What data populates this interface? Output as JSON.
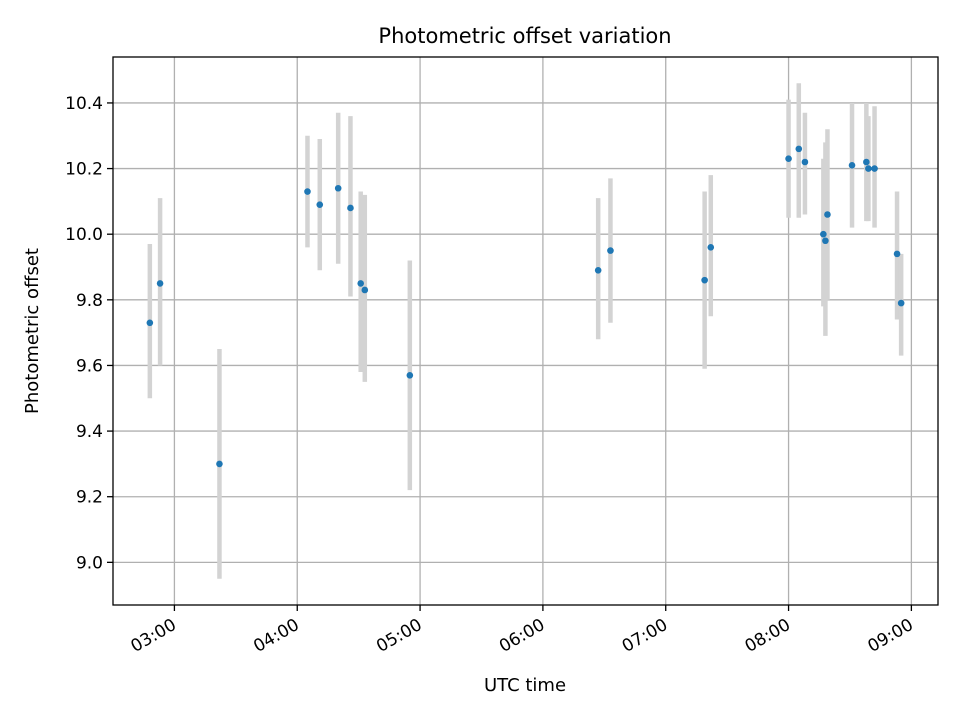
{
  "chart_data": {
    "type": "scatter",
    "title": "Photometric offset variation",
    "xlabel": "UTC time",
    "ylabel": "Photometric offset",
    "xlim": [
      "02:30",
      "09:13"
    ],
    "ylim": [
      8.87,
      10.54
    ],
    "x_ticks": [
      "03:00",
      "04:00",
      "05:00",
      "06:00",
      "07:00",
      "08:00",
      "09:00"
    ],
    "y_ticks": [
      "9.0",
      "9.2",
      "9.4",
      "9.6",
      "9.8",
      "10.0",
      "10.2",
      "10.4"
    ],
    "grid": true,
    "colors": {
      "points": "#1f77b4",
      "error_bars": "#d3d3d3"
    },
    "series": [
      {
        "points": [
          {
            "x": "02:48",
            "y": 9.73,
            "ylow": 9.5,
            "yhigh": 9.97
          },
          {
            "x": "02:53",
            "y": 9.85,
            "ylow": 9.6,
            "yhigh": 10.11
          },
          {
            "x": "03:22",
            "y": 9.3,
            "ylow": 8.95,
            "yhigh": 9.65
          },
          {
            "x": "04:05",
            "y": 10.13,
            "ylow": 9.96,
            "yhigh": 10.3
          },
          {
            "x": "04:11",
            "y": 10.09,
            "ylow": 9.89,
            "yhigh": 10.29
          },
          {
            "x": "04:20",
            "y": 10.14,
            "ylow": 9.91,
            "yhigh": 10.37
          },
          {
            "x": "04:26",
            "y": 10.08,
            "ylow": 9.81,
            "yhigh": 10.36
          },
          {
            "x": "04:31",
            "y": 9.85,
            "ylow": 9.58,
            "yhigh": 10.13
          },
          {
            "x": "04:33",
            "y": 9.83,
            "ylow": 9.55,
            "yhigh": 10.12
          },
          {
            "x": "04:55",
            "y": 9.57,
            "ylow": 9.22,
            "yhigh": 9.92
          },
          {
            "x": "06:27",
            "y": 9.89,
            "ylow": 9.68,
            "yhigh": 10.11
          },
          {
            "x": "06:33",
            "y": 9.95,
            "ylow": 9.73,
            "yhigh": 10.17
          },
          {
            "x": "07:19",
            "y": 9.86,
            "ylow": 9.59,
            "yhigh": 10.13
          },
          {
            "x": "07:22",
            "y": 9.96,
            "ylow": 9.75,
            "yhigh": 10.18
          },
          {
            "x": "08:00",
            "y": 10.23,
            "ylow": 10.05,
            "yhigh": 10.41
          },
          {
            "x": "08:05",
            "y": 10.26,
            "ylow": 10.05,
            "yhigh": 10.46
          },
          {
            "x": "08:08",
            "y": 10.22,
            "ylow": 10.06,
            "yhigh": 10.37
          },
          {
            "x": "08:17",
            "y": 10.0,
            "ylow": 9.78,
            "yhigh": 10.23
          },
          {
            "x": "08:18",
            "y": 9.98,
            "ylow": 9.69,
            "yhigh": 10.28
          },
          {
            "x": "08:19",
            "y": 10.06,
            "ylow": 9.8,
            "yhigh": 10.32
          },
          {
            "x": "08:31",
            "y": 10.21,
            "ylow": 10.02,
            "yhigh": 10.4
          },
          {
            "x": "08:38",
            "y": 10.22,
            "ylow": 10.04,
            "yhigh": 10.4
          },
          {
            "x": "08:39",
            "y": 10.2,
            "ylow": 10.04,
            "yhigh": 10.36
          },
          {
            "x": "08:42",
            "y": 10.2,
            "ylow": 10.02,
            "yhigh": 10.39
          },
          {
            "x": "08:53",
            "y": 9.94,
            "ylow": 9.74,
            "yhigh": 10.13
          },
          {
            "x": "08:55",
            "y": 9.79,
            "ylow": 9.63,
            "yhigh": 9.94
          }
        ]
      }
    ]
  }
}
